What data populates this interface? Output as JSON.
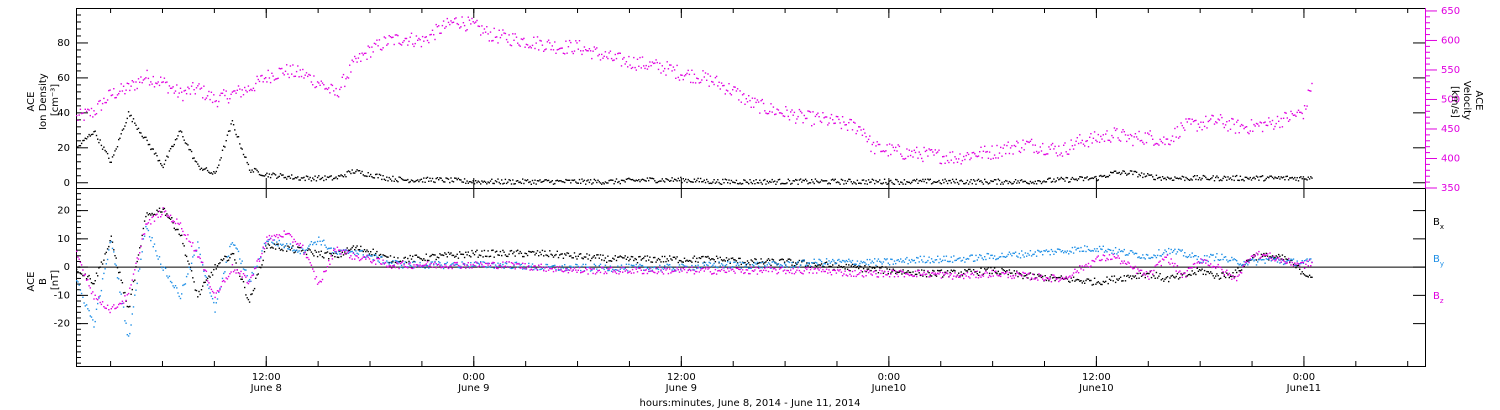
{
  "x_caption": "hours:minutes, June  8, 2014 - June 11, 2014",
  "time_ticks": [
    {
      "hour": 12,
      "l1": "12:00",
      "l2": "June 8"
    },
    {
      "hour": 24,
      "l1": "0:00",
      "l2": "June 9"
    },
    {
      "hour": 36,
      "l1": "12:00",
      "l2": "June 9"
    },
    {
      "hour": 48,
      "l1": "0:00",
      "l2": "June10"
    },
    {
      "hour": 60,
      "l1": "12:00",
      "l2": "June10"
    },
    {
      "hour": 72,
      "l1": "0:00",
      "l2": "June11"
    }
  ],
  "colors": {
    "black": "#000000",
    "magenta": "#e000e0",
    "blue": "#1e8fe6"
  },
  "chart_data": [
    {
      "type": "scatter",
      "panel": "top",
      "ylabel_left": [
        "ACE",
        "Ion Density",
        "[cm⁻³]"
      ],
      "ylabel_right": [
        "ACE",
        "Velocity",
        "[km/s]"
      ],
      "x_units": "hours since 2014-06-08 00:00",
      "xlim": [
        1,
        79
      ],
      "ylim_left": [
        -3,
        100
      ],
      "ylim_right": [
        350,
        655
      ],
      "yticks_left": [
        0,
        20,
        40,
        60,
        80
      ],
      "yticks_right": [
        350,
        400,
        450,
        500,
        550,
        600,
        650
      ],
      "series": [
        {
          "axis": "left",
          "color": "#000000",
          "x": [
            1,
            2,
            3,
            4,
            5,
            6,
            7,
            8,
            9,
            10,
            11,
            12,
            13,
            14,
            15,
            16,
            17,
            18,
            19,
            20,
            22,
            24,
            26,
            28,
            30,
            32,
            34,
            36,
            38,
            40,
            42,
            44,
            46,
            48,
            50,
            52,
            54,
            56,
            58,
            60,
            61,
            62,
            63,
            64,
            66,
            68,
            70,
            72,
            72.5
          ],
          "y": [
            20,
            30,
            12,
            40,
            25,
            10,
            30,
            10,
            5,
            35,
            8,
            5,
            4,
            3,
            3,
            3,
            7,
            5,
            3,
            2,
            2,
            1,
            1,
            1,
            1,
            1,
            2,
            2,
            1,
            1,
            1,
            1,
            1,
            1,
            1,
            1,
            1,
            1,
            2,
            3,
            6,
            6,
            4,
            3,
            3,
            3,
            3,
            3,
            4
          ]
        },
        {
          "axis": "right",
          "color": "#e000e0",
          "x": [
            1,
            2,
            3,
            4,
            5,
            6,
            7,
            8,
            9,
            10,
            11,
            12,
            13,
            14,
            15,
            16,
            17,
            18,
            19,
            20,
            21,
            22,
            23,
            24,
            25,
            26,
            27,
            28,
            29,
            30,
            31,
            32,
            33,
            34,
            35,
            36,
            37,
            38,
            39,
            40,
            41,
            42,
            43,
            44,
            45,
            46,
            46.5,
            47,
            48,
            49,
            50,
            51,
            52,
            53,
            54,
            55,
            56,
            57,
            58,
            59,
            60,
            61,
            62,
            63,
            64,
            65,
            66,
            67,
            68,
            69,
            70,
            71,
            72,
            72.5
          ],
          "y": [
            470,
            480,
            510,
            520,
            540,
            530,
            510,
            520,
            500,
            510,
            520,
            540,
            550,
            545,
            530,
            510,
            560,
            585,
            600,
            605,
            600,
            620,
            635,
            625,
            610,
            605,
            600,
            595,
            590,
            590,
            580,
            570,
            565,
            560,
            555,
            545,
            540,
            530,
            515,
            495,
            485,
            478,
            470,
            468,
            462,
            455,
            450,
            420,
            415,
            410,
            408,
            405,
            403,
            410,
            412,
            420,
            425,
            420,
            415,
            430,
            435,
            442,
            435,
            438,
            430,
            455,
            460,
            465,
            455,
            455,
            460,
            470,
            480,
            540
          ]
        }
      ]
    },
    {
      "type": "scatter",
      "panel": "bottom",
      "ylabel_left": [
        "ACE",
        "B",
        "[nT]"
      ],
      "x_units": "hours since 2014-06-08 00:00",
      "xlim": [
        1,
        79
      ],
      "ylim": [
        -35,
        28
      ],
      "yticks": [
        -20,
        -10,
        0,
        10,
        20
      ],
      "legend": [
        "B",
        "B",
        "B"
      ],
      "legend_subscripts": [
        "x",
        "y",
        "z"
      ],
      "series": [
        {
          "name": "Bx",
          "color": "#000000",
          "x": [
            1,
            2,
            3,
            4,
            5,
            6,
            7,
            8,
            9,
            10,
            11,
            12,
            13,
            14,
            15,
            16,
            17,
            18,
            19,
            20,
            22,
            24,
            26,
            28,
            30,
            32,
            34,
            36,
            38,
            40,
            42,
            44,
            46,
            48,
            50,
            52,
            54,
            56,
            58,
            60,
            61,
            62,
            63,
            64,
            65,
            66,
            67,
            68,
            69,
            70,
            71,
            72,
            72.5
          ],
          "y": [
            0,
            -5,
            10,
            -15,
            18,
            21,
            12,
            -10,
            0,
            5,
            -12,
            8,
            7,
            6,
            5,
            4,
            7,
            6,
            3,
            3,
            4,
            5,
            5,
            5,
            4,
            3,
            3,
            3,
            3,
            2,
            2,
            1,
            0,
            -1,
            -2,
            -2,
            -1,
            -3,
            -4,
            -5,
            -4,
            -3,
            -2,
            -4,
            -3,
            -1,
            -3,
            -2,
            4,
            4,
            3,
            -2,
            -3
          ]
        },
        {
          "name": "By",
          "color": "#1e8fe6",
          "x": [
            1,
            2,
            3,
            4,
            5,
            6,
            7,
            8,
            9,
            10,
            11,
            12,
            13,
            14,
            15,
            16,
            17,
            18,
            19,
            20,
            22,
            24,
            26,
            28,
            30,
            32,
            34,
            36,
            38,
            40,
            42,
            44,
            46,
            48,
            50,
            52,
            54,
            56,
            58,
            60,
            61,
            62,
            63,
            64,
            65,
            66,
            67,
            68,
            69,
            70,
            71,
            72,
            72.5
          ],
          "y": [
            -5,
            -20,
            10,
            -25,
            15,
            0,
            -10,
            8,
            -15,
            10,
            -5,
            10,
            8,
            6,
            10,
            5,
            6,
            4,
            2,
            1,
            1,
            1,
            1,
            0,
            0,
            0,
            0,
            0,
            1,
            1,
            1,
            2,
            2,
            2,
            3,
            3,
            4,
            5,
            6,
            7,
            6,
            5,
            4,
            6,
            5,
            3,
            4,
            2,
            2,
            3,
            2,
            2,
            2
          ]
        },
        {
          "name": "Bz",
          "color": "#e000e0",
          "x": [
            1,
            2,
            3,
            4,
            5,
            6,
            7,
            8,
            9,
            10,
            11,
            12,
            13,
            14,
            15,
            16,
            17,
            18,
            19,
            20,
            22,
            24,
            26,
            28,
            30,
            32,
            34,
            36,
            38,
            40,
            42,
            44,
            46,
            48,
            50,
            52,
            54,
            56,
            58,
            60,
            61,
            62,
            63,
            64,
            65,
            66,
            67,
            68,
            69,
            70,
            71,
            72,
            72.5
          ],
          "y": [
            5,
            -10,
            -15,
            -10,
            15,
            20,
            15,
            5,
            -10,
            0,
            -5,
            10,
            12,
            8,
            -6,
            7,
            4,
            3,
            1,
            1,
            1,
            1,
            1,
            0,
            -1,
            -1,
            -1,
            -1,
            -1,
            -1,
            -1,
            -1,
            -2,
            -2,
            -2,
            -3,
            -2,
            -3,
            -4,
            3,
            4,
            0,
            -3,
            4,
            -3,
            3,
            0,
            -4,
            5,
            4,
            2,
            1,
            2
          ]
        }
      ]
    }
  ]
}
